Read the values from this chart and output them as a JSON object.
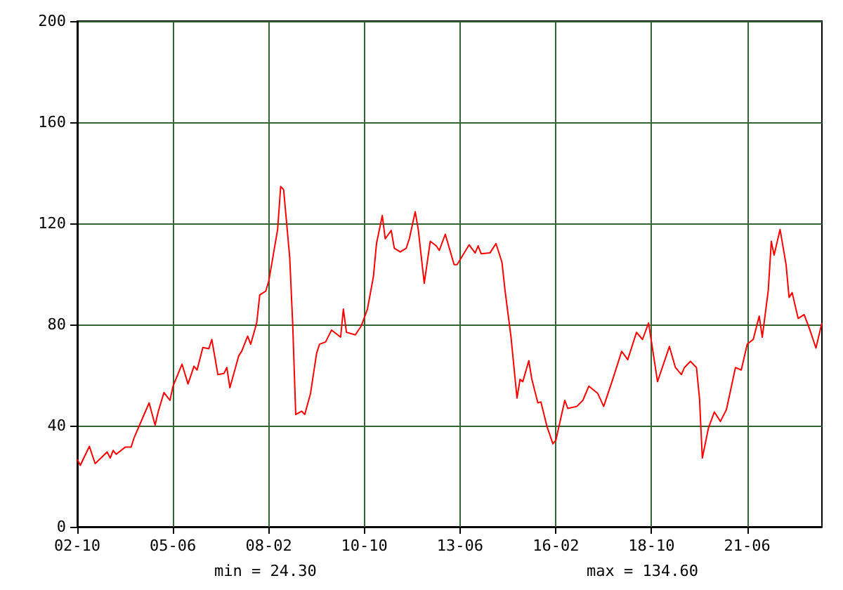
{
  "chart_data": {
    "type": "line",
    "x": [
      "2002-10",
      "2002-11",
      "2003-02",
      "2003-04",
      "2003-08",
      "2003-09",
      "2003-10",
      "2003-11",
      "2004-02",
      "2004-04",
      "2004-05",
      "2004-07",
      "2004-10",
      "2004-12",
      "2005-01",
      "2005-03",
      "2005-05",
      "2005-06",
      "2005-09",
      "2005-11",
      "2006-01",
      "2006-02",
      "2006-04",
      "2006-06",
      "2006-07",
      "2006-09",
      "2006-11",
      "2006-12",
      "2007-01",
      "2007-04",
      "2007-05",
      "2007-07",
      "2007-08",
      "2007-10",
      "2007-11",
      "2008-01",
      "2008-02",
      "2008-05",
      "2008-06",
      "2008-07",
      "2008-09",
      "2008-10",
      "2008-11",
      "2009-01",
      "2009-02",
      "2009-04",
      "2009-06",
      "2009-07",
      "2009-09",
      "2009-11",
      "2010-02",
      "2010-03",
      "2010-04",
      "2010-07",
      "2010-09",
      "2010-11",
      "2011-01",
      "2011-02",
      "2011-04",
      "2011-05",
      "2011-07",
      "2011-08",
      "2011-10",
      "2011-12",
      "2012-01",
      "2012-03",
      "2012-04",
      "2012-06",
      "2012-08",
      "2012-10",
      "2012-11",
      "2013-01",
      "2013-04",
      "2013-05",
      "2013-09",
      "2013-11",
      "2013-12",
      "2014-01",
      "2014-04",
      "2014-06",
      "2014-08",
      "2014-09",
      "2014-11",
      "2015-01",
      "2015-02",
      "2015-03",
      "2015-05",
      "2015-06",
      "2015-08",
      "2015-09",
      "2015-11",
      "2016-01",
      "2016-02",
      "2016-05",
      "2016-06",
      "2016-09",
      "2016-11",
      "2017-01",
      "2017-04",
      "2017-06",
      "2017-09",
      "2017-12",
      "2018-02",
      "2018-05",
      "2018-07",
      "2018-09",
      "2018-12",
      "2019-04",
      "2019-06",
      "2019-08",
      "2019-09",
      "2019-11",
      "2020-01",
      "2020-02",
      "2020-03",
      "2020-05",
      "2020-07",
      "2020-09",
      "2020-11",
      "2021-02",
      "2021-04",
      "2021-06",
      "2021-08",
      "2021-10",
      "2021-11",
      "2022-01",
      "2022-02",
      "2022-03",
      "2022-05",
      "2022-07",
      "2022-08",
      "2022-09",
      "2022-11",
      "2023-01",
      "2023-03",
      "2023-05",
      "2023-07"
    ],
    "series": [
      {
        "color": "#ff0000",
        "values": [
          26.7,
          24.3,
          31.8,
          25,
          29.6,
          27.2,
          30.2,
          28.7,
          31.5,
          31.5,
          35.2,
          40.7,
          49,
          40.2,
          45.4,
          53.1,
          50,
          55.6,
          64.3,
          56.5,
          63.5,
          62,
          70.9,
          70.4,
          74.1,
          60.2,
          60.6,
          63,
          55,
          67.6,
          69.4,
          75.4,
          72.2,
          80.6,
          91.7,
          93.2,
          97.2,
          117.6,
          134.6,
          133.3,
          106.5,
          80.6,
          44.4,
          45.7,
          44.4,
          52.8,
          68.5,
          72.2,
          73.1,
          77.8,
          75,
          86.1,
          76.9,
          75.9,
          79.6,
          86.1,
          99,
          112,
          123.1,
          113.9,
          117.2,
          110.2,
          108.7,
          110.2,
          113.9,
          124.6,
          117.6,
          96.3,
          112.9,
          111.1,
          109.3,
          115.7,
          103.7,
          103.7,
          111.5,
          108.3,
          111.1,
          108,
          108.3,
          112,
          104.6,
          93.5,
          75,
          50.9,
          58.3,
          57.4,
          65.7,
          58.3,
          49,
          49.4,
          39.8,
          32.8,
          34.3,
          50,
          46.8,
          47.6,
          50,
          55.6,
          52.8,
          47.6,
          58.3,
          69.4,
          66.1,
          76.9,
          74.1,
          80.6,
          57.4,
          71.3,
          63,
          60.2,
          63,
          65.4,
          63,
          50.9,
          27.2,
          38.9,
          45.4,
          41.7,
          46.3,
          63,
          62,
          72.2,
          74.1,
          83.3,
          75,
          93.5,
          112.9,
          107.4,
          117.6,
          103.7,
          90.7,
          92.6,
          82.4,
          83.9,
          77.8,
          70.7,
          80.6
        ]
      }
    ],
    "xlim": [
      "2002-10",
      "2023-07"
    ],
    "xticks": [
      {
        "value": "2002-10",
        "label": "02-10"
      },
      {
        "value": "2005-06",
        "label": "05-06"
      },
      {
        "value": "2008-02",
        "label": "08-02"
      },
      {
        "value": "2010-10",
        "label": "10-10"
      },
      {
        "value": "2013-06",
        "label": "13-06"
      },
      {
        "value": "2016-02",
        "label": "16-02"
      },
      {
        "value": "2018-10",
        "label": "18-10"
      },
      {
        "value": "2021-06",
        "label": "21-06"
      }
    ],
    "ylim": [
      0,
      200
    ],
    "yticks": [
      0,
      40,
      80,
      120,
      160,
      200
    ],
    "grid": true,
    "marker": "none",
    "line_style": "solid",
    "annotations": [
      "min = 24.30",
      "max = 134.60"
    ]
  }
}
